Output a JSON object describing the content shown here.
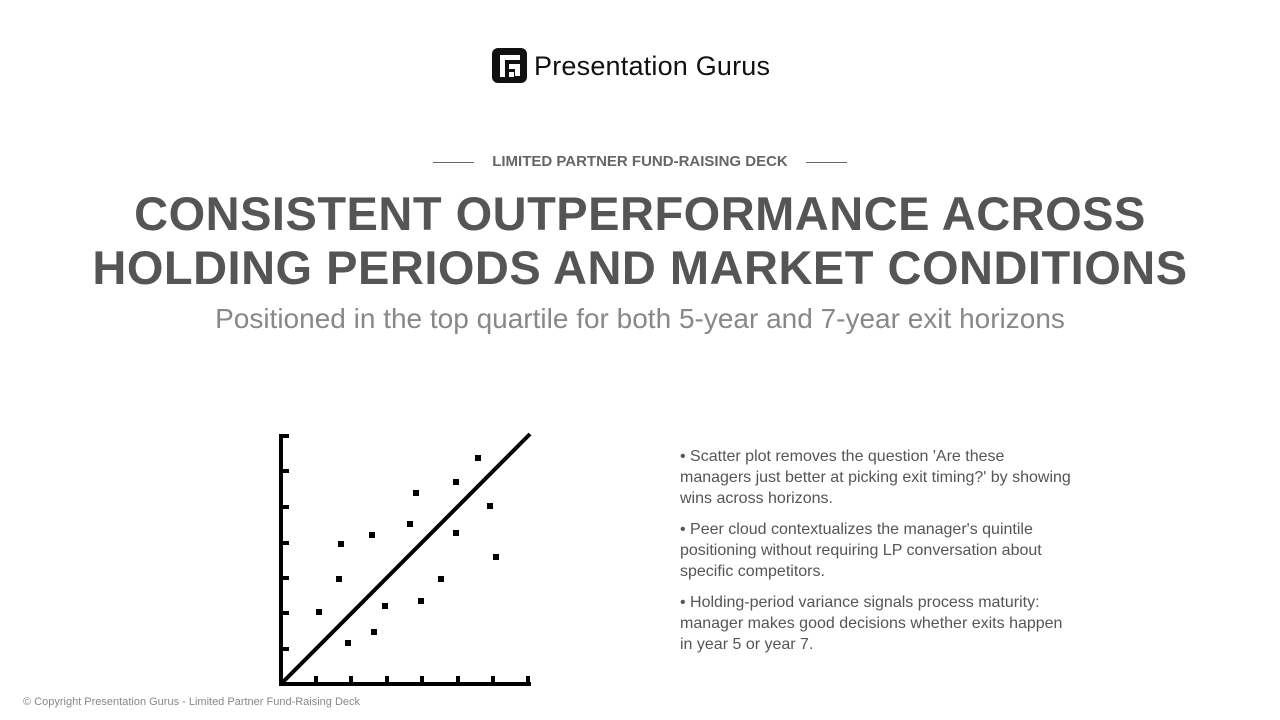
{
  "logo": {
    "text": "Presentation Gurus"
  },
  "header": {
    "kicker": "LIMITED PARTNER FUND-RAISING DECK",
    "title_lines": [
      "CONSISTENT OUTPERFORMANCE ACROSS",
      "HOLDING PERIODS AND MARKET CONDITIONS"
    ],
    "subtitle": "Positioned in the top quartile for both 5-year and 7-year exit horizons"
  },
  "bullets": [
    "• Scatter plot removes the question 'Are these managers just better at picking exit timing?' by showing wins across horizons.",
    "• Peer cloud contextualizes the manager's quintile positioning without requiring LP conversation about specific competitors.",
    "• Holding-period variance signals process maturity: manager makes good decisions whether exits happen in year 5 or year 7."
  ],
  "footer": "© Copyright Presentation Gurus - Limited Partner Fund-Raising Deck"
}
